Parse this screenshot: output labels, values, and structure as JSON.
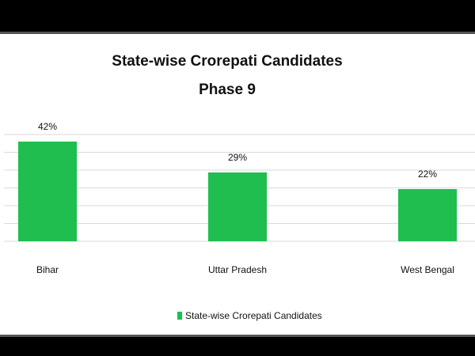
{
  "colors": {
    "bar": "#1FBE4F",
    "background": "#FFFFFF",
    "frame": "#000000"
  },
  "chart_data": {
    "type": "bar",
    "title": "State-wise Crorepati Candidates",
    "subtitle": "Phase 9",
    "categories": [
      "Bihar",
      "Uttar Pradesh",
      "West Bengal"
    ],
    "series": [
      {
        "name": "State-wise Crorepati Candidates",
        "values": [
          42,
          29,
          22
        ],
        "labels": [
          "42%",
          "29%",
          "22%"
        ]
      }
    ],
    "xlabel": "",
    "ylabel": "",
    "ylim": [
      0,
      45
    ],
    "grid": true,
    "legend_position": "bottom"
  }
}
